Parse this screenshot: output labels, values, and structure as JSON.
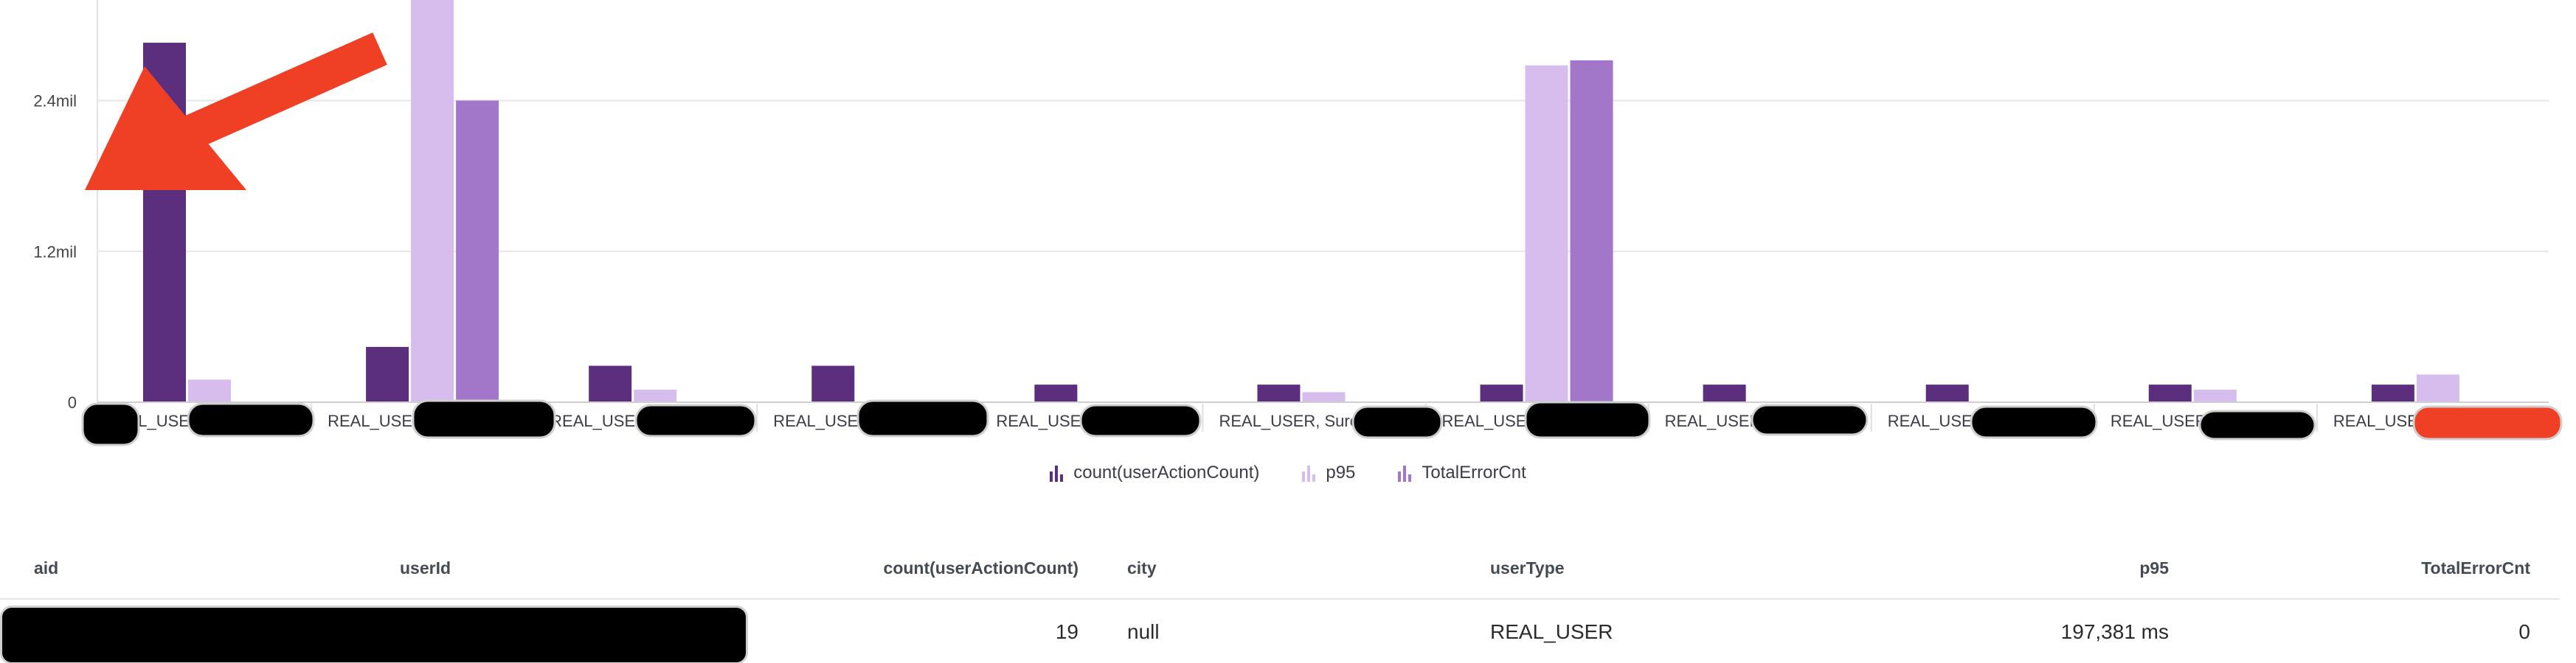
{
  "chart_data": {
    "type": "bar",
    "categories": [
      "REAL_USER",
      "REAL_USER",
      "REAL_USER",
      "REAL_USER,",
      "REAL_USER",
      "REAL_USER, Sures",
      "REAL_USER",
      "REAL_USER",
      "REAL_USER",
      "REAL_USER",
      "REAL_USER"
    ],
    "series": [
      {
        "name": "count(userActionCount)",
        "color": "#5b2f7e",
        "values": [
          2860000,
          440000,
          290000,
          290000,
          140000,
          140000,
          140000,
          140000,
          140000,
          140000,
          140000
        ]
      },
      {
        "name": "p95",
        "color": "#d7bdee",
        "values": [
          180000,
          3200000,
          100000,
          0,
          0,
          80000,
          2680000,
          0,
          0,
          100000,
          220000
        ]
      },
      {
        "name": "TotalErrorCnt",
        "color": "#a277c9",
        "values": [
          0,
          2400000,
          0,
          0,
          0,
          0,
          2720000,
          0,
          0,
          0,
          0
        ]
      }
    ],
    "ylim": [
      0,
      3200000
    ],
    "yticks": [
      {
        "value": 0,
        "label": "0"
      },
      {
        "value": 1200000,
        "label": "1.2mil"
      },
      {
        "value": 2400000,
        "label": "2.4mil"
      }
    ],
    "grid": true,
    "legend_position": "bottom-center"
  },
  "annotation": {
    "arrow_color": "#ef4026"
  },
  "table": {
    "columns": [
      "aid",
      "userId",
      "count(userActionCount)",
      "city",
      "userType",
      "p95",
      "TotalErrorCnt"
    ],
    "rows": [
      {
        "aid": "",
        "userId": "",
        "count": "19",
        "city": "null",
        "userType": "REAL_USER",
        "p95": "197,381 ms",
        "errors": "0"
      }
    ]
  }
}
